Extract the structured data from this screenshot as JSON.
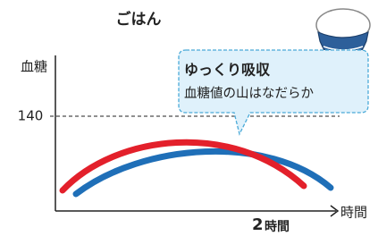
{
  "title": "ごはん",
  "y_axis_label": "血糖",
  "y_marker": "140",
  "x_axis_label": "時間",
  "x_marker": {
    "number": "2",
    "unit": "時間"
  },
  "callout": {
    "headline": "ゆっくり吸収",
    "text": "血糖値の山はなだらか"
  }
}
